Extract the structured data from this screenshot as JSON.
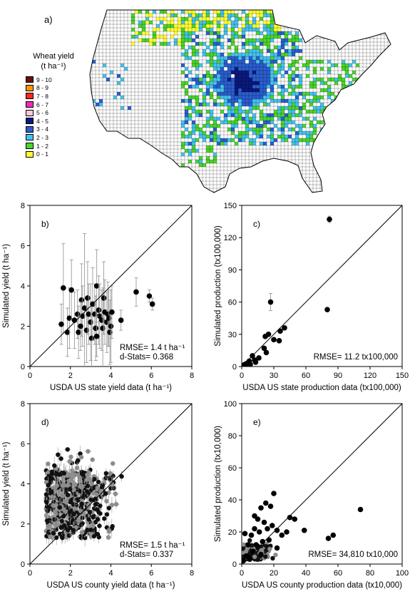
{
  "map": {
    "label": "a)",
    "legend_title": "Wheat yield",
    "legend_unit": "(t ha⁻¹)",
    "legend": [
      {
        "label": "9 - 10",
        "color": "#6b0f0f"
      },
      {
        "label": "8 - 9",
        "color": "#ff9900"
      },
      {
        "label": "7 - 8",
        "color": "#ff2a1a"
      },
      {
        "label": "6 - 7",
        "color": "#f02eb4"
      },
      {
        "label": "5 - 6",
        "color": "#f8c8e0"
      },
      {
        "label": "4 - 5",
        "color": "#0a1a80"
      },
      {
        "label": "3 - 4",
        "color": "#2a5fd0"
      },
      {
        "label": "2 - 3",
        "color": "#45c3f0"
      },
      {
        "label": "1 - 2",
        "color": "#4ad62a"
      },
      {
        "label": "0 - 1",
        "color": "#ffff33"
      }
    ]
  },
  "chart_data": [
    {
      "id": "b",
      "type": "scatter",
      "panel_label": "b)",
      "xlabel": "USDA US state yield data (t ha⁻¹)",
      "ylabel": "Simulated yield (t ha⁻¹)",
      "xlim": [
        0,
        8
      ],
      "ylim": [
        0,
        8
      ],
      "xticks": [
        0,
        2,
        4,
        6,
        8
      ],
      "yticks": [
        0,
        2,
        4,
        6,
        8
      ],
      "annotations": [
        "RMSE= 1.4 t ha⁻¹",
        "d-Stats= 0.368"
      ],
      "one_to_one_line": true,
      "points": [
        {
          "x": 1.65,
          "y": 3.9,
          "err": 2.2
        },
        {
          "x": 1.55,
          "y": 2.1,
          "err": 1.0
        },
        {
          "x": 1.85,
          "y": 1.7,
          "err": 1.2
        },
        {
          "x": 1.95,
          "y": 2.4,
          "err": 1.5
        },
        {
          "x": 2.05,
          "y": 3.8,
          "err": 1.5
        },
        {
          "x": 2.2,
          "y": 2.3,
          "err": 1.4
        },
        {
          "x": 2.35,
          "y": 2.6,
          "err": 1.2
        },
        {
          "x": 2.4,
          "y": 1.7,
          "err": 1.3
        },
        {
          "x": 2.55,
          "y": 3.3,
          "err": 1.8
        },
        {
          "x": 2.6,
          "y": 2.5,
          "err": 1.5
        },
        {
          "x": 2.7,
          "y": 2.9,
          "err": 3.7
        },
        {
          "x": 2.8,
          "y": 1.8,
          "err": 1.6
        },
        {
          "x": 2.85,
          "y": 3.4,
          "err": 1.8
        },
        {
          "x": 2.9,
          "y": 2.6,
          "err": 1.5
        },
        {
          "x": 3.0,
          "y": 2.2,
          "err": 1.9
        },
        {
          "x": 3.05,
          "y": 1.4,
          "err": 1.8
        },
        {
          "x": 3.1,
          "y": 3.1,
          "err": 1.8
        },
        {
          "x": 3.2,
          "y": 2.6,
          "err": 1.5
        },
        {
          "x": 3.25,
          "y": 1.9,
          "err": 1.6
        },
        {
          "x": 3.3,
          "y": 4.0,
          "err": 1.8
        },
        {
          "x": 3.4,
          "y": 2.8,
          "err": 1.7
        },
        {
          "x": 3.45,
          "y": 2.5,
          "err": 1.6
        },
        {
          "x": 3.55,
          "y": 2.3,
          "err": 1.5
        },
        {
          "x": 3.6,
          "y": 1.9,
          "err": 2.0
        },
        {
          "x": 3.65,
          "y": 3.4,
          "err": 1.8
        },
        {
          "x": 3.7,
          "y": 2.7,
          "err": 1.6
        },
        {
          "x": 3.8,
          "y": 2.2,
          "err": 1.5
        },
        {
          "x": 3.85,
          "y": 2.6,
          "err": 1.6
        },
        {
          "x": 3.9,
          "y": 2.4,
          "err": 1.4
        },
        {
          "x": 3.95,
          "y": 1.7,
          "err": 1.6
        },
        {
          "x": 4.0,
          "y": 2.0,
          "err": 1.8
        },
        {
          "x": 4.05,
          "y": 2.7,
          "err": 1.3
        },
        {
          "x": 4.5,
          "y": 2.3,
          "err": 0.5
        },
        {
          "x": 5.25,
          "y": 3.7,
          "err": 0.7
        },
        {
          "x": 5.9,
          "y": 3.5,
          "err": 0.3
        },
        {
          "x": 6.05,
          "y": 3.1,
          "err": 0.3
        },
        {
          "x": 3.3,
          "y": 1.5,
          "err": 1.0
        },
        {
          "x": 2.5,
          "y": 2.0,
          "err": 1.2
        }
      ]
    },
    {
      "id": "c",
      "type": "scatter",
      "panel_label": "c)",
      "xlabel": "USDA US state production data (tx100,000)",
      "ylabel": "Simulated production (tx100,000)",
      "xlim": [
        0,
        150
      ],
      "ylim": [
        0,
        150
      ],
      "xticks": [
        0,
        30,
        60,
        90,
        120,
        150
      ],
      "yticks": [
        0,
        30,
        60,
        90,
        120,
        150
      ],
      "annotations": [
        "RMSE= 11.2 tx100,000"
      ],
      "one_to_one_line": true,
      "points": [
        {
          "x": 82,
          "y": 137,
          "err": 3
        },
        {
          "x": 27,
          "y": 60,
          "err": 8
        },
        {
          "x": 80,
          "y": 53,
          "err": 0
        },
        {
          "x": 40,
          "y": 36,
          "err": 0
        },
        {
          "x": 36,
          "y": 33,
          "err": 0
        },
        {
          "x": 25,
          "y": 30,
          "err": 0
        },
        {
          "x": 22,
          "y": 28,
          "err": 0
        },
        {
          "x": 35,
          "y": 24,
          "err": 0
        },
        {
          "x": 30,
          "y": 25,
          "err": 0
        },
        {
          "x": 21,
          "y": 17,
          "err": 0
        },
        {
          "x": 23,
          "y": 13,
          "err": 0
        },
        {
          "x": 16,
          "y": 8,
          "err": 0
        },
        {
          "x": 12,
          "y": 6,
          "err": 0
        },
        {
          "x": 10,
          "y": 10,
          "err": 0
        },
        {
          "x": 7,
          "y": 5,
          "err": 0
        },
        {
          "x": 5,
          "y": 3,
          "err": 0
        },
        {
          "x": 3,
          "y": 2,
          "err": 0
        },
        {
          "x": 2,
          "y": 1,
          "err": 0
        },
        {
          "x": 1,
          "y": 1,
          "err": 0
        },
        {
          "x": 8,
          "y": 2,
          "err": 0
        },
        {
          "x": 13,
          "y": 4,
          "err": 0
        },
        {
          "x": 4,
          "y": 0.5,
          "err": 0
        }
      ]
    },
    {
      "id": "d",
      "type": "scatter",
      "panel_label": "d)",
      "xlabel": "USDA US county yield data (t ha⁻¹)",
      "ylabel": "Simulated yield (t ha⁻¹)",
      "xlim": [
        0,
        8
      ],
      "ylim": [
        0,
        8
      ],
      "xticks": [
        0,
        2,
        4,
        6,
        8
      ],
      "yticks": [
        0,
        2,
        4,
        6,
        8
      ],
      "annotations": [
        "RMSE= 1.5 t ha⁻¹",
        "d-Stats= 0.337"
      ],
      "one_to_one_line": true,
      "cloud": {
        "n": 600,
        "x_min": 0.8,
        "x_max": 4.6,
        "y_min": 0.4,
        "y_max": 6.4
      }
    },
    {
      "id": "e",
      "type": "scatter",
      "panel_label": "e)",
      "xlabel": "USDA US county production data (tx10,000)",
      "ylabel": "Simulated production (tx10,000)",
      "xlim": [
        0,
        100
      ],
      "ylim": [
        0,
        100
      ],
      "xticks": [
        0,
        20,
        40,
        60,
        80,
        100
      ],
      "yticks": [
        0,
        20,
        40,
        60,
        80,
        100
      ],
      "annotations": [
        "RMSE= 34,810 tx10,000"
      ],
      "one_to_one_line": true,
      "points": [
        {
          "x": 74,
          "y": 34
        },
        {
          "x": 57,
          "y": 18
        },
        {
          "x": 54,
          "y": 16
        },
        {
          "x": 39,
          "y": 21
        },
        {
          "x": 33,
          "y": 28
        },
        {
          "x": 30,
          "y": 29
        },
        {
          "x": 28,
          "y": 20
        },
        {
          "x": 25,
          "y": 18
        },
        {
          "x": 22,
          "y": 21
        },
        {
          "x": 20,
          "y": 44
        },
        {
          "x": 18,
          "y": 36
        },
        {
          "x": 15,
          "y": 38
        },
        {
          "x": 12,
          "y": 35
        },
        {
          "x": 10,
          "y": 28
        },
        {
          "x": 8,
          "y": 30
        },
        {
          "x": 14,
          "y": 26
        },
        {
          "x": 16,
          "y": 22
        },
        {
          "x": 19,
          "y": 24
        },
        {
          "x": 11,
          "y": 20
        },
        {
          "x": 6,
          "y": 18
        },
        {
          "x": 2,
          "y": 19
        },
        {
          "x": 4,
          "y": 12
        },
        {
          "x": 9,
          "y": 12
        },
        {
          "x": 13,
          "y": 14
        },
        {
          "x": 17,
          "y": 15
        },
        {
          "x": 7,
          "y": 8
        },
        {
          "x": 3,
          "y": 5
        },
        {
          "x": 5,
          "y": 3
        },
        {
          "x": 1,
          "y": 2
        },
        {
          "x": 12,
          "y": 6
        },
        {
          "x": 8,
          "y": 22
        },
        {
          "x": 22,
          "y": 10
        }
      ],
      "cloud": {
        "n": 160,
        "x_min": 0.5,
        "x_max": 22,
        "y_min": 0.5,
        "y_max": 16
      }
    }
  ]
}
